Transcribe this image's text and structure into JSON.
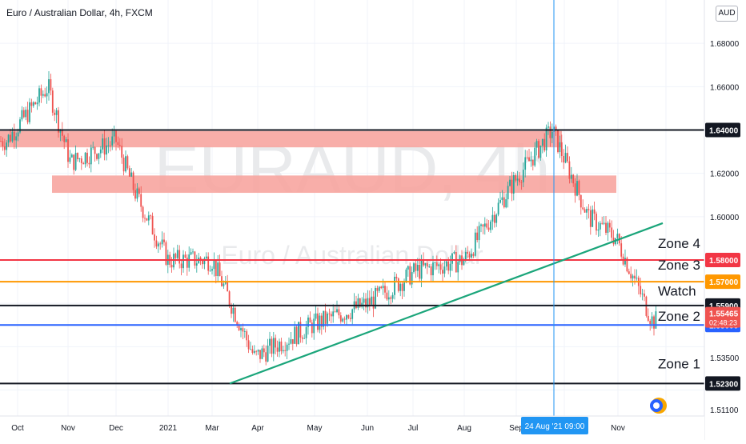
{
  "header": {
    "title": "Euro / Australian Dollar, 4h, FXCM",
    "currency_button": "AUD"
  },
  "watermark": {
    "symbol": "EURAUD, 4h",
    "description": "Euro / Australian Dollar"
  },
  "crosshair": {
    "time_label": "24 Aug '21  09:00"
  },
  "last_price": {
    "value": "1.55465",
    "countdown": "02:48:23",
    "color": "#ef5350"
  },
  "colors": {
    "up": "#26a69a",
    "down": "#ef5350",
    "zone": "#f7a5a0",
    "trend": "#1aa57a",
    "red_line": "#f23645",
    "orange_line": "#ff9800",
    "blue_line": "#2962ff",
    "black_line": "#131722",
    "crosshair": "#2196f3"
  },
  "chart_data": {
    "type": "candlestick",
    "title": "Euro / Australian Dollar, 4h, FXCM",
    "ylim": [
      1.508,
      1.7
    ],
    "y_ticks": [
      "1.68000",
      "1.66000",
      "1.62000",
      "1.60000",
      "1.53500",
      "1.51100"
    ],
    "x_ticks": [
      "Oct",
      "Nov",
      "Dec",
      "2021",
      "Mar",
      "Apr",
      "May",
      "Jun",
      "Jul",
      "Aug",
      "Sep",
      "Oct",
      "Nov"
    ],
    "approx_close_path": [
      {
        "t": "Oct 2020",
        "v": 1.635
      },
      {
        "t": "Late Oct",
        "v": 1.66
      },
      {
        "t": "Nov",
        "v": 1.625
      },
      {
        "t": "Dec",
        "v": 1.635
      },
      {
        "t": "Dec mid",
        "v": 1.61
      },
      {
        "t": "Jan 2021",
        "v": 1.58
      },
      {
        "t": "Feb",
        "v": 1.58
      },
      {
        "t": "Mar",
        "v": 1.535
      },
      {
        "t": "Apr",
        "v": 1.55
      },
      {
        "t": "May",
        "v": 1.56
      },
      {
        "t": "Jun",
        "v": 1.575
      },
      {
        "t": "Jul",
        "v": 1.58
      },
      {
        "t": "Aug",
        "v": 1.615
      },
      {
        "t": "24 Aug",
        "v": 1.64
      },
      {
        "t": "Sep",
        "v": 1.6
      },
      {
        "t": "Oct",
        "v": 1.59
      },
      {
        "t": "Oct end",
        "v": 1.552
      }
    ],
    "levels": [
      {
        "price": 1.64,
        "label": "1.64000",
        "color": "#131722"
      },
      {
        "price": 1.58,
        "label": "1.58000",
        "color": "#f23645"
      },
      {
        "price": 1.57,
        "label": "1.57000",
        "color": "#ff9800"
      },
      {
        "price": 1.559,
        "label": "1.55900",
        "color": "#131722"
      },
      {
        "price": 1.55,
        "label": "1.55000",
        "color": "#2962ff"
      },
      {
        "price": 1.523,
        "label": "1.52300",
        "color": "#131722"
      }
    ],
    "zones": [
      {
        "name": "upper supply zone",
        "from": 1.632,
        "to": 1.6395
      },
      {
        "name": "lower supply zone",
        "from": 1.611,
        "to": 1.619
      }
    ],
    "annotations": [
      "Zone 4",
      "Zone 3",
      "Watch",
      "Zone 2",
      "Zone 1"
    ],
    "trendline": {
      "from": {
        "t": "Mar",
        "v": 1.523
      },
      "to": {
        "t": "Oct end",
        "v": 1.597
      }
    },
    "grid": true
  }
}
